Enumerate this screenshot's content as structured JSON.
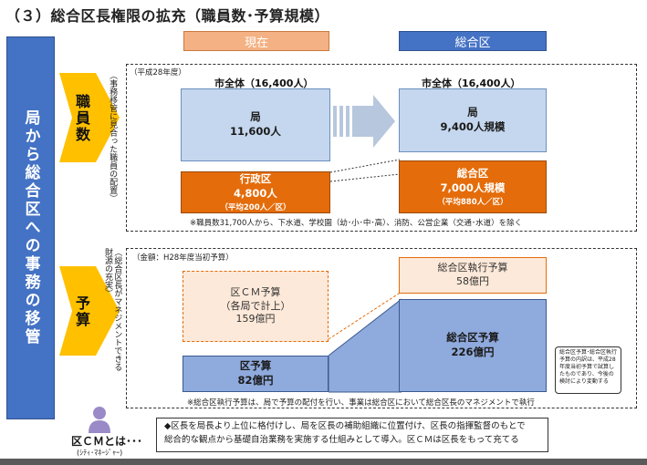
{
  "title": "（３）総合区長権限の拡充（職員数･予算規模）",
  "columns": {
    "current": "現在",
    "sogoku": "総合区"
  },
  "colors": {
    "orange": "#e46c0a",
    "orange_light": "#f9c38e",
    "blue_dark": "#4472c4",
    "blue_mid": "#8faadc",
    "blue_light": "#c5d7ee",
    "arrow_yellow": "#ffc000"
  },
  "side_banner": "局から総合区への事務の移管",
  "staff": {
    "row_label": "職員数",
    "side_note": "（事務移管に見合った職員の配置）",
    "year": "（平成28年度）",
    "left_whole": "市全体（16,400人）",
    "right_whole": "市全体（16,400人）",
    "left_kyoku_l1": "局",
    "left_kyoku_l2": "11,600人",
    "left_ward_l1": "行政区",
    "left_ward_l2": "4,800人",
    "left_ward_l3": "（平均200人／区）",
    "right_kyoku_l1": "局",
    "right_kyoku_l2": "9,400人規模",
    "right_sogo_l1": "総合区",
    "right_sogo_l2": "7,000人規模",
    "right_sogo_l3": "（平均880人／区）",
    "footnote": "※職員数31,700人から、下水道、学校園（幼･小･中･高）、消防、公営企業（交通･水道）を除く"
  },
  "budget": {
    "row_label": "予算",
    "side_note_1": "（総合区長がマネジメントできる",
    "side_note_2": "財源の充実）",
    "amount_note": "（金額：H28年度当初予算）",
    "left_cm_l1": "区ＣＭ予算",
    "left_cm_l2": "（各局で計上）",
    "left_cm_l3": "159億円",
    "left_ward_l1": "区予算",
    "left_ward_l2": "82億円",
    "right_exec_l1": "総合区執行予算",
    "right_exec_l2": "58億円",
    "right_sogo_l1": "総合区予算",
    "right_sogo_l2": "226億円",
    "footnote": "※総合区執行予算は、局で予算の配付を行い、事業は総合区において総合区長のマネジメントで執行",
    "side_box_note": "総合区予算･総合区執行予算の内訳は、平成28年度当初予算で試算したものであり、今後の検討により変動する"
  },
  "cm": {
    "label": "区ＣＭとは･･･",
    "sub": "(ｼﾃｨ･ﾏﾈｰｼﾞｬｰ)",
    "desc_line1": "◆区長を局長より上位に格付けし、局を区長の補助組織に位置付け、区長の指揮監督のもとで",
    "desc_line2": "総合的な観点から基礎自治業務を実施する仕組みとして導入。区ＣＭは区長をもって充てる"
  }
}
